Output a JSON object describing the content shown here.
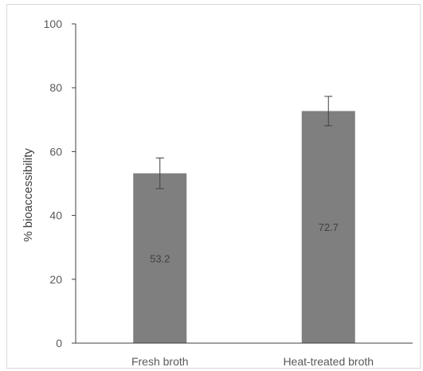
{
  "chart_data": {
    "type": "bar",
    "title": "",
    "xlabel": "",
    "ylabel": "% bioaccessibility",
    "categories": [
      "Fresh broth",
      "Heat-treated broth"
    ],
    "values": [
      53.2,
      72.7
    ],
    "data_labels": [
      "53.2",
      "72.7"
    ],
    "error_bars": [
      4.8,
      4.6
    ],
    "ylim": [
      0,
      100
    ],
    "y_ticks": [
      0,
      20,
      40,
      60,
      80,
      100
    ],
    "grid": false,
    "legend": "none",
    "bar_color": "#7f7f7f",
    "error_bar_color": "#404040",
    "axis_color": "#404040"
  }
}
